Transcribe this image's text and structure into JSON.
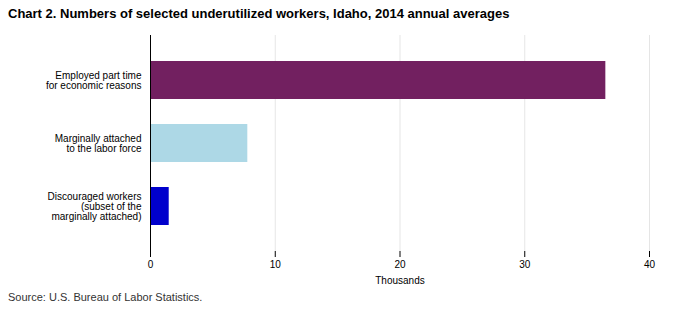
{
  "chart_data": {
    "type": "bar",
    "orientation": "horizontal",
    "title": "Chart 2. Numbers of selected underutilized workers, Idaho, 2014  annual averages",
    "categories": [
      "Discouraged workers\n(subset of the\nmarginally attached)",
      "Marginally attached\nto the labor force",
      "Employed part time\nfor economic reasons"
    ],
    "values": [
      1.5,
      7.8,
      36.5
    ],
    "colors": [
      "#0000cc",
      "#add8e6",
      "#722060"
    ],
    "xlim": [
      0,
      40
    ],
    "xticks": [
      0,
      10,
      20,
      30,
      40
    ],
    "xlabel": "Thousands",
    "grid": true,
    "source": "Source: U.S. Bureau of Labor Statistics."
  }
}
